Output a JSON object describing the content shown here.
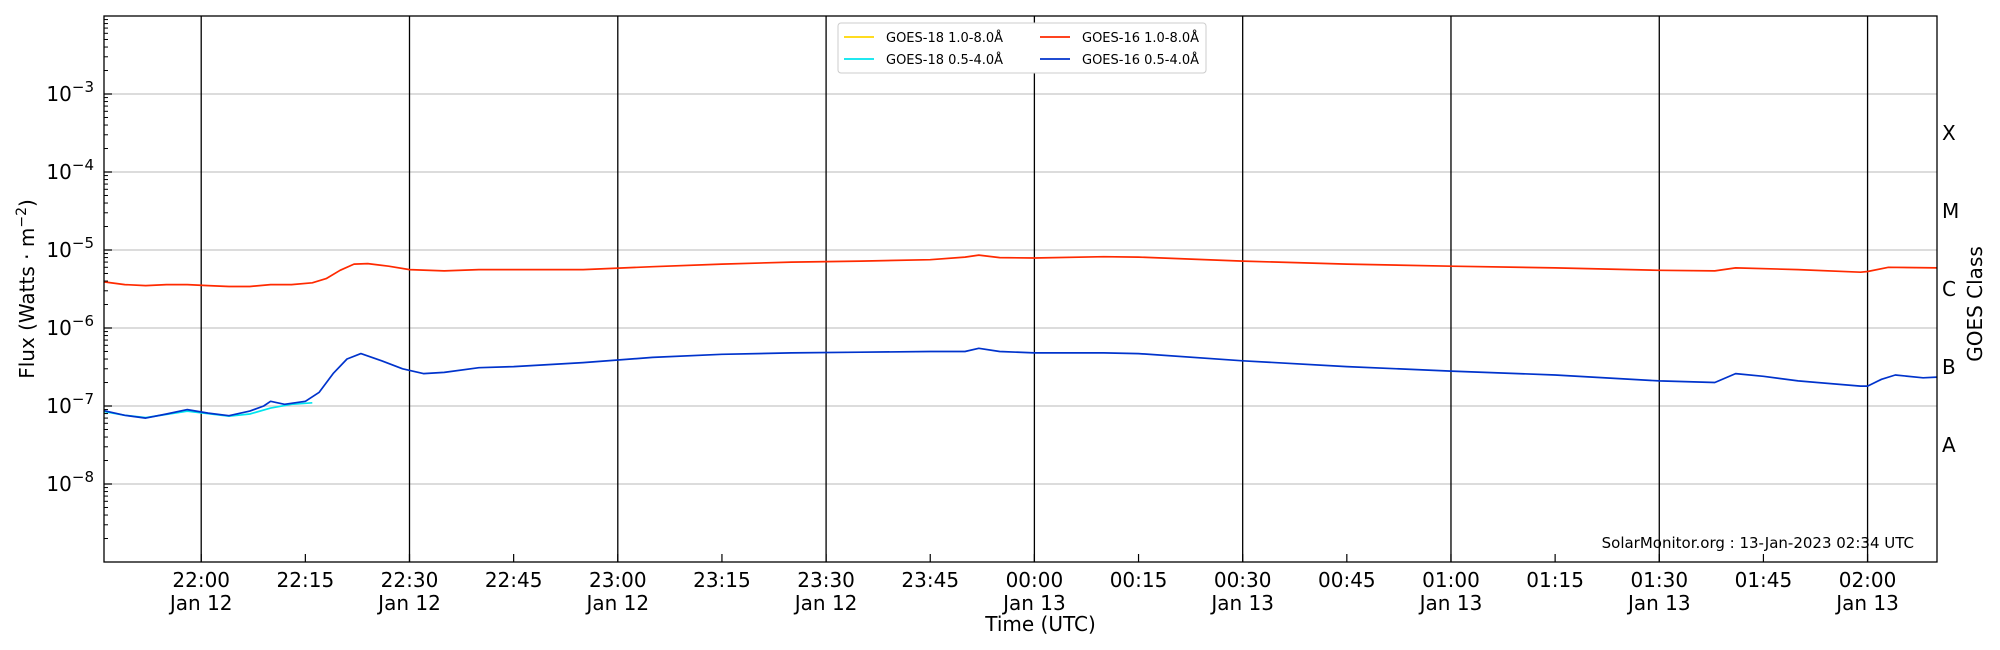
{
  "chart_data": {
    "type": "line",
    "title": "",
    "xlabel": "Time (UTC)",
    "ylabel": "Flux (Watts · m$^{-2}$)",
    "ylabel_parts": {
      "main": "Flux (Watts · m",
      "sup": "−2",
      "close": ")"
    },
    "y2label": "GOES Class",
    "yscale": "log",
    "ylim": [
      1e-09,
      0.01
    ],
    "xlim": [
      "2023-01-12 21:46",
      "2023-01-13 02:10"
    ],
    "yticks": [
      {
        "value": 1e-08,
        "base": "10",
        "exp": "−8"
      },
      {
        "value": 1e-07,
        "base": "10",
        "exp": "−7"
      },
      {
        "value": 1e-06,
        "base": "10",
        "exp": "−6"
      },
      {
        "value": 1e-05,
        "base": "10",
        "exp": "−5"
      },
      {
        "value": 0.0001,
        "base": "10",
        "exp": "−4"
      },
      {
        "value": 0.001,
        "base": "10",
        "exp": "−3"
      }
    ],
    "xticks": [
      {
        "time": "2023-01-12 22:00",
        "label": "22:00",
        "date": "Jan 12"
      },
      {
        "time": "2023-01-12 22:15",
        "label": "22:15",
        "date": ""
      },
      {
        "time": "2023-01-12 22:30",
        "label": "22:30",
        "date": "Jan 12"
      },
      {
        "time": "2023-01-12 22:45",
        "label": "22:45",
        "date": ""
      },
      {
        "time": "2023-01-12 23:00",
        "label": "23:00",
        "date": "Jan 12"
      },
      {
        "time": "2023-01-12 23:15",
        "label": "23:15",
        "date": ""
      },
      {
        "time": "2023-01-12 23:30",
        "label": "23:30",
        "date": "Jan 12"
      },
      {
        "time": "2023-01-12 23:45",
        "label": "23:45",
        "date": ""
      },
      {
        "time": "2023-01-13 00:00",
        "label": "00:00",
        "date": "Jan 13"
      },
      {
        "time": "2023-01-13 00:15",
        "label": "00:15",
        "date": ""
      },
      {
        "time": "2023-01-13 00:30",
        "label": "00:30",
        "date": "Jan 13"
      },
      {
        "time": "2023-01-13 00:45",
        "label": "00:45",
        "date": ""
      },
      {
        "time": "2023-01-13 01:00",
        "label": "01:00",
        "date": "Jan 13"
      },
      {
        "time": "2023-01-13 01:15",
        "label": "01:15",
        "date": ""
      },
      {
        "time": "2023-01-13 01:30",
        "label": "01:30",
        "date": "Jan 13"
      },
      {
        "time": "2023-01-13 01:45",
        "label": "01:45",
        "date": ""
      },
      {
        "time": "2023-01-13 02:00",
        "label": "02:00",
        "date": "Jan 13"
      }
    ],
    "vlines": [
      "2023-01-12 22:00",
      "2023-01-12 22:30",
      "2023-01-12 23:00",
      "2023-01-12 23:30",
      "2023-01-13 00:00",
      "2023-01-13 00:30",
      "2023-01-13 01:00",
      "2023-01-13 01:30",
      "2023-01-13 02:00"
    ],
    "goes_classes": [
      {
        "label": "A",
        "value": 3.16e-08
      },
      {
        "label": "B",
        "value": 3.16e-07
      },
      {
        "label": "C",
        "value": 3.16e-06
      },
      {
        "label": "M",
        "value": 3.16e-05
      },
      {
        "label": "X",
        "value": 0.000316
      }
    ],
    "grid": "horizontal at decades",
    "legend_position": "top-center",
    "legend_columns": 2,
    "series": [
      {
        "name": "GOES-18 1.0-8.0Å",
        "color": "#ffd700",
        "x": [],
        "y": []
      },
      {
        "name": "GOES-18 0.5-4.0Å",
        "color": "#00e5ee",
        "x": [
          "2023-01-12 21:46",
          "2023-01-12 21:49",
          "2023-01-12 21:52",
          "2023-01-12 21:55",
          "2023-01-12 21:58",
          "2023-01-12 22:01",
          "2023-01-12 22:04",
          "2023-01-12 22:07",
          "2023-01-12 22:10",
          "2023-01-12 22:13",
          "2023-01-12 22:16"
        ],
        "y": [
          8.5e-08,
          7.6e-08,
          7.1e-08,
          7.8e-08,
          8.6e-08,
          8e-08,
          7.4e-08,
          7.9e-08,
          9.4e-08,
          1.05e-07,
          1.1e-07
        ]
      },
      {
        "name": "GOES-16 1.0-8.0Å",
        "color": "#ff2a00",
        "x": [
          "2023-01-12 21:46",
          "2023-01-12 21:49",
          "2023-01-12 21:52",
          "2023-01-12 21:55",
          "2023-01-12 21:58",
          "2023-01-12 22:01",
          "2023-01-12 22:04",
          "2023-01-12 22:07",
          "2023-01-12 22:10",
          "2023-01-12 22:13",
          "2023-01-12 22:16",
          "2023-01-12 22:18",
          "2023-01-12 22:20",
          "2023-01-12 22:22",
          "2023-01-12 22:24",
          "2023-01-12 22:27",
          "2023-01-12 22:30",
          "2023-01-12 22:35",
          "2023-01-12 22:40",
          "2023-01-12 22:45",
          "2023-01-12 22:55",
          "2023-01-12 23:05",
          "2023-01-12 23:15",
          "2023-01-12 23:25",
          "2023-01-12 23:35",
          "2023-01-12 23:45",
          "2023-01-12 23:50",
          "2023-01-12 23:52",
          "2023-01-12 23:55",
          "2023-01-13 00:00",
          "2023-01-13 00:10",
          "2023-01-13 00:15",
          "2023-01-13 00:30",
          "2023-01-13 00:45",
          "2023-01-13 01:00",
          "2023-01-13 01:15",
          "2023-01-13 01:30",
          "2023-01-13 01:38",
          "2023-01-13 01:41",
          "2023-01-13 01:50",
          "2023-01-13 01:59",
          "2023-01-13 02:00",
          "2023-01-13 02:03",
          "2023-01-13 02:10"
        ],
        "y": [
          3.9e-06,
          3.6e-06,
          3.5e-06,
          3.6e-06,
          3.6e-06,
          3.5e-06,
          3.4e-06,
          3.4e-06,
          3.6e-06,
          3.6e-06,
          3.8e-06,
          4.3e-06,
          5.5e-06,
          6.6e-06,
          6.7e-06,
          6.2e-06,
          5.6e-06,
          5.4e-06,
          5.6e-06,
          5.6e-06,
          5.6e-06,
          6.1e-06,
          6.6e-06,
          7e-06,
          7.2e-06,
          7.5e-06,
          8.1e-06,
          8.6e-06,
          8e-06,
          7.9e-06,
          8.2e-06,
          8.1e-06,
          7.2e-06,
          6.6e-06,
          6.2e-06,
          5.9e-06,
          5.5e-06,
          5.4e-06,
          5.9e-06,
          5.6e-06,
          5.2e-06,
          5.3e-06,
          6e-06,
          5.9e-06
        ]
      },
      {
        "name": "GOES-16 0.5-4.0Å",
        "color": "#0033cc",
        "x": [
          "2023-01-12 21:46",
          "2023-01-12 21:49",
          "2023-01-12 21:52",
          "2023-01-12 21:55",
          "2023-01-12 21:58",
          "2023-01-12 22:01",
          "2023-01-12 22:04",
          "2023-01-12 22:07",
          "2023-01-12 22:09",
          "2023-01-12 22:10",
          "2023-01-12 22:12",
          "2023-01-12 22:15",
          "2023-01-12 22:17",
          "2023-01-12 22:19",
          "2023-01-12 22:21",
          "2023-01-12 22:23",
          "2023-01-12 22:26",
          "2023-01-12 22:29",
          "2023-01-12 22:32",
          "2023-01-12 22:35",
          "2023-01-12 22:40",
          "2023-01-12 22:45",
          "2023-01-12 22:55",
          "2023-01-12 23:05",
          "2023-01-12 23:15",
          "2023-01-12 23:25",
          "2023-01-12 23:35",
          "2023-01-12 23:45",
          "2023-01-12 23:50",
          "2023-01-12 23:52",
          "2023-01-12 23:55",
          "2023-01-13 00:00",
          "2023-01-13 00:05",
          "2023-01-13 00:10",
          "2023-01-13 00:15",
          "2023-01-13 00:30",
          "2023-01-13 00:45",
          "2023-01-13 01:00",
          "2023-01-13 01:15",
          "2023-01-13 01:30",
          "2023-01-13 01:38",
          "2023-01-13 01:41",
          "2023-01-13 01:45",
          "2023-01-13 01:50",
          "2023-01-13 01:59",
          "2023-01-13 02:00",
          "2023-01-13 02:02",
          "2023-01-13 02:04",
          "2023-01-13 02:08",
          "2023-01-13 02:10"
        ],
        "y": [
          8.7e-08,
          7.6e-08,
          7e-08,
          7.9e-08,
          9e-08,
          8.1e-08,
          7.5e-08,
          8.6e-08,
          1e-07,
          1.15e-07,
          1.05e-07,
          1.15e-07,
          1.5e-07,
          2.6e-07,
          4e-07,
          4.7e-07,
          3.8e-07,
          3e-07,
          2.6e-07,
          2.7e-07,
          3.1e-07,
          3.2e-07,
          3.6e-07,
          4.2e-07,
          4.6e-07,
          4.8e-07,
          4.9e-07,
          5e-07,
          5e-07,
          5.5e-07,
          5e-07,
          4.8e-07,
          4.8e-07,
          4.8e-07,
          4.7e-07,
          3.8e-07,
          3.2e-07,
          2.8e-07,
          2.5e-07,
          2.1e-07,
          2e-07,
          2.6e-07,
          2.4e-07,
          2.1e-07,
          1.8e-07,
          1.8e-07,
          2.2e-07,
          2.5e-07,
          2.3e-07,
          2.35e-07
        ]
      }
    ],
    "annotation": "SolarMonitor.org : 13-Jan-2023 02:34 UTC"
  }
}
